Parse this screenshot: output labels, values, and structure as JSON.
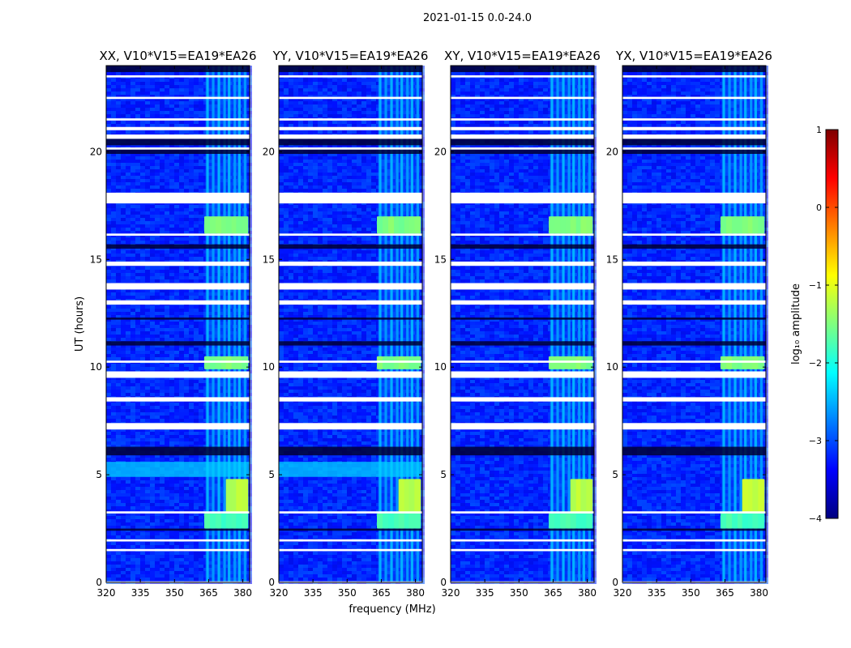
{
  "chart_data": {
    "type": "heatmap",
    "suptitle": "2021-01-15 0.0-24.0",
    "xlabel": "frequency (MHz)",
    "ylabel": "UT (hours)",
    "xlim": [
      320,
      383
    ],
    "ylim": [
      0,
      24
    ],
    "x_ticks": [
      320,
      335,
      350,
      365,
      380
    ],
    "y_ticks": [
      0,
      5,
      10,
      15,
      20
    ],
    "panels": [
      {
        "title": "XX, V10*V15=EA19*EA26",
        "pol": "XX"
      },
      {
        "title": "YY, V10*V15=EA19*EA26",
        "pol": "YY"
      },
      {
        "title": "XY, V10*V15=EA19*EA26",
        "pol": "XY"
      },
      {
        "title": "YX, V10*V15=EA19*EA26",
        "pol": "YX"
      }
    ],
    "colorbar": {
      "label": "log₁₀ amplitude",
      "min": -4,
      "max": 1,
      "ticks": [
        -4,
        -3,
        -2,
        -1,
        0,
        1
      ],
      "tick_labels": [
        "−4",
        "−3",
        "−2",
        "−1",
        "0",
        "1"
      ],
      "colormap": [
        "#00007f",
        "#0000ff",
        "#007fff",
        "#00ffff",
        "#7fff7f",
        "#ffff00",
        "#ff7f00",
        "#ff0000",
        "#7f0000"
      ]
    },
    "background_level": -3.2,
    "rfi_channels_mhz": [
      364.5,
      367,
      369.5,
      372,
      374,
      376.5,
      378.5,
      381
    ],
    "rfi_band_mhz": [
      363.5,
      382
    ],
    "bright_bursts": [
      {
        "ut": [
          16.2,
          17.0
        ],
        "mhz": [
          364,
          381
        ],
        "level": -1.5
      },
      {
        "ut": [
          9.9,
          10.5
        ],
        "mhz": [
          364,
          381
        ],
        "level": -1.5
      },
      {
        "ut": [
          2.5,
          3.2
        ],
        "mhz": [
          363.5,
          381
        ],
        "level": -1.8
      },
      {
        "ut": [
          3.2,
          4.8
        ],
        "mhz": [
          373,
          381
        ],
        "level": -1.2
      }
    ],
    "flagged_ut_ranges": [
      [
        0.0,
        0.05
      ],
      [
        1.45,
        1.55
      ],
      [
        1.9,
        2.0
      ],
      [
        3.2,
        3.3
      ],
      [
        7.1,
        7.4
      ],
      [
        8.4,
        8.6
      ],
      [
        9.5,
        9.8
      ],
      [
        10.2,
        10.3
      ],
      [
        12.9,
        13.1
      ],
      [
        13.6,
        13.9
      ],
      [
        14.7,
        14.9
      ],
      [
        16.1,
        16.2
      ],
      [
        17.6,
        18.1
      ],
      [
        20.1,
        20.2
      ],
      [
        20.6,
        20.8
      ],
      [
        21.0,
        21.15
      ],
      [
        21.45,
        21.55
      ],
      [
        22.45,
        22.55
      ],
      [
        23.45,
        23.55
      ]
    ],
    "low_amp_ut_ranges": [
      [
        2.4,
        2.5
      ],
      [
        5.9,
        6.3
      ],
      [
        11.0,
        11.2
      ],
      [
        12.2,
        12.3
      ],
      [
        15.5,
        15.7
      ],
      [
        19.9,
        20.1
      ],
      [
        20.3,
        20.6
      ],
      [
        23.7,
        24.0
      ]
    ]
  }
}
